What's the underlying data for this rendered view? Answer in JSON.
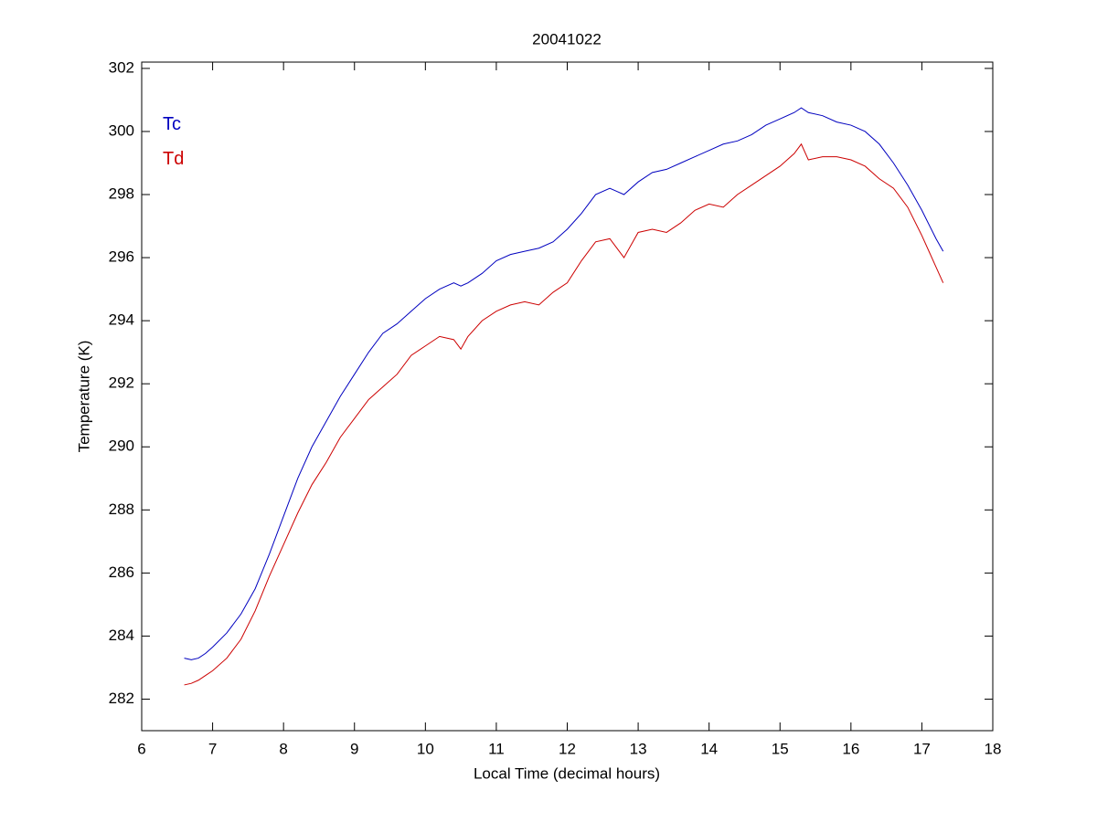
{
  "chart_data": {
    "type": "line",
    "title": "20041022",
    "x_label": "Local Time (decimal hours)",
    "y_label": "Temperature (K)",
    "x": [
      6.6,
      6.7,
      6.8,
      6.9,
      7.0,
      7.2,
      7.4,
      7.6,
      7.8,
      8.0,
      8.2,
      8.4,
      8.6,
      8.8,
      9.0,
      9.2,
      9.4,
      9.6,
      9.8,
      10.0,
      10.2,
      10.4,
      10.5,
      10.6,
      10.8,
      11.0,
      11.2,
      11.4,
      11.6,
      11.8,
      12.0,
      12.2,
      12.4,
      12.6,
      12.7,
      12.8,
      13.0,
      13.2,
      13.4,
      13.6,
      13.8,
      14.0,
      14.2,
      14.4,
      14.6,
      14.8,
      15.0,
      15.2,
      15.3,
      15.4,
      15.6,
      15.8,
      16.0,
      16.2,
      16.4,
      16.6,
      16.8,
      17.0,
      17.2,
      17.3
    ],
    "series": [
      {
        "name": "Tc",
        "color": "#0000bf",
        "values": [
          283.3,
          283.25,
          283.3,
          283.45,
          283.65,
          284.1,
          284.7,
          285.5,
          286.6,
          287.8,
          289.0,
          290.0,
          290.8,
          291.6,
          292.3,
          293.0,
          293.6,
          293.9,
          294.3,
          294.7,
          295.0,
          295.2,
          295.1,
          295.2,
          295.5,
          295.9,
          296.1,
          296.2,
          296.3,
          296.5,
          296.9,
          297.4,
          298.0,
          298.2,
          298.1,
          298.0,
          298.4,
          298.7,
          298.8,
          299.0,
          299.2,
          299.4,
          299.6,
          299.7,
          299.9,
          300.2,
          300.4,
          300.6,
          300.75,
          300.6,
          300.5,
          300.3,
          300.2,
          300.0,
          299.6,
          299.0,
          298.3,
          297.5,
          296.6,
          296.2
        ]
      },
      {
        "name": "Td",
        "color": "#cc0000",
        "values": [
          282.45,
          282.5,
          282.6,
          282.75,
          282.9,
          283.3,
          283.9,
          284.8,
          285.9,
          286.9,
          287.9,
          288.8,
          289.5,
          290.3,
          290.9,
          291.5,
          291.9,
          292.3,
          292.9,
          293.2,
          293.5,
          293.4,
          293.1,
          293.5,
          294.0,
          294.3,
          294.5,
          294.6,
          294.5,
          294.9,
          295.2,
          295.9,
          296.5,
          296.6,
          296.3,
          296.0,
          296.8,
          296.9,
          296.8,
          297.1,
          297.5,
          297.7,
          297.6,
          298.0,
          298.3,
          298.6,
          298.9,
          299.3,
          299.6,
          299.1,
          299.2,
          299.2,
          299.1,
          298.9,
          298.5,
          298.2,
          297.6,
          296.7,
          295.7,
          295.2
        ]
      }
    ],
    "xlim": [
      6,
      18
    ],
    "xticks": [
      6,
      7,
      8,
      9,
      10,
      11,
      12,
      13,
      14,
      15,
      16,
      17,
      18
    ],
    "ylim": [
      281,
      302.2
    ],
    "yticks": [
      282,
      284,
      286,
      288,
      290,
      292,
      294,
      296,
      298,
      300,
      302
    ],
    "grid": false
  }
}
